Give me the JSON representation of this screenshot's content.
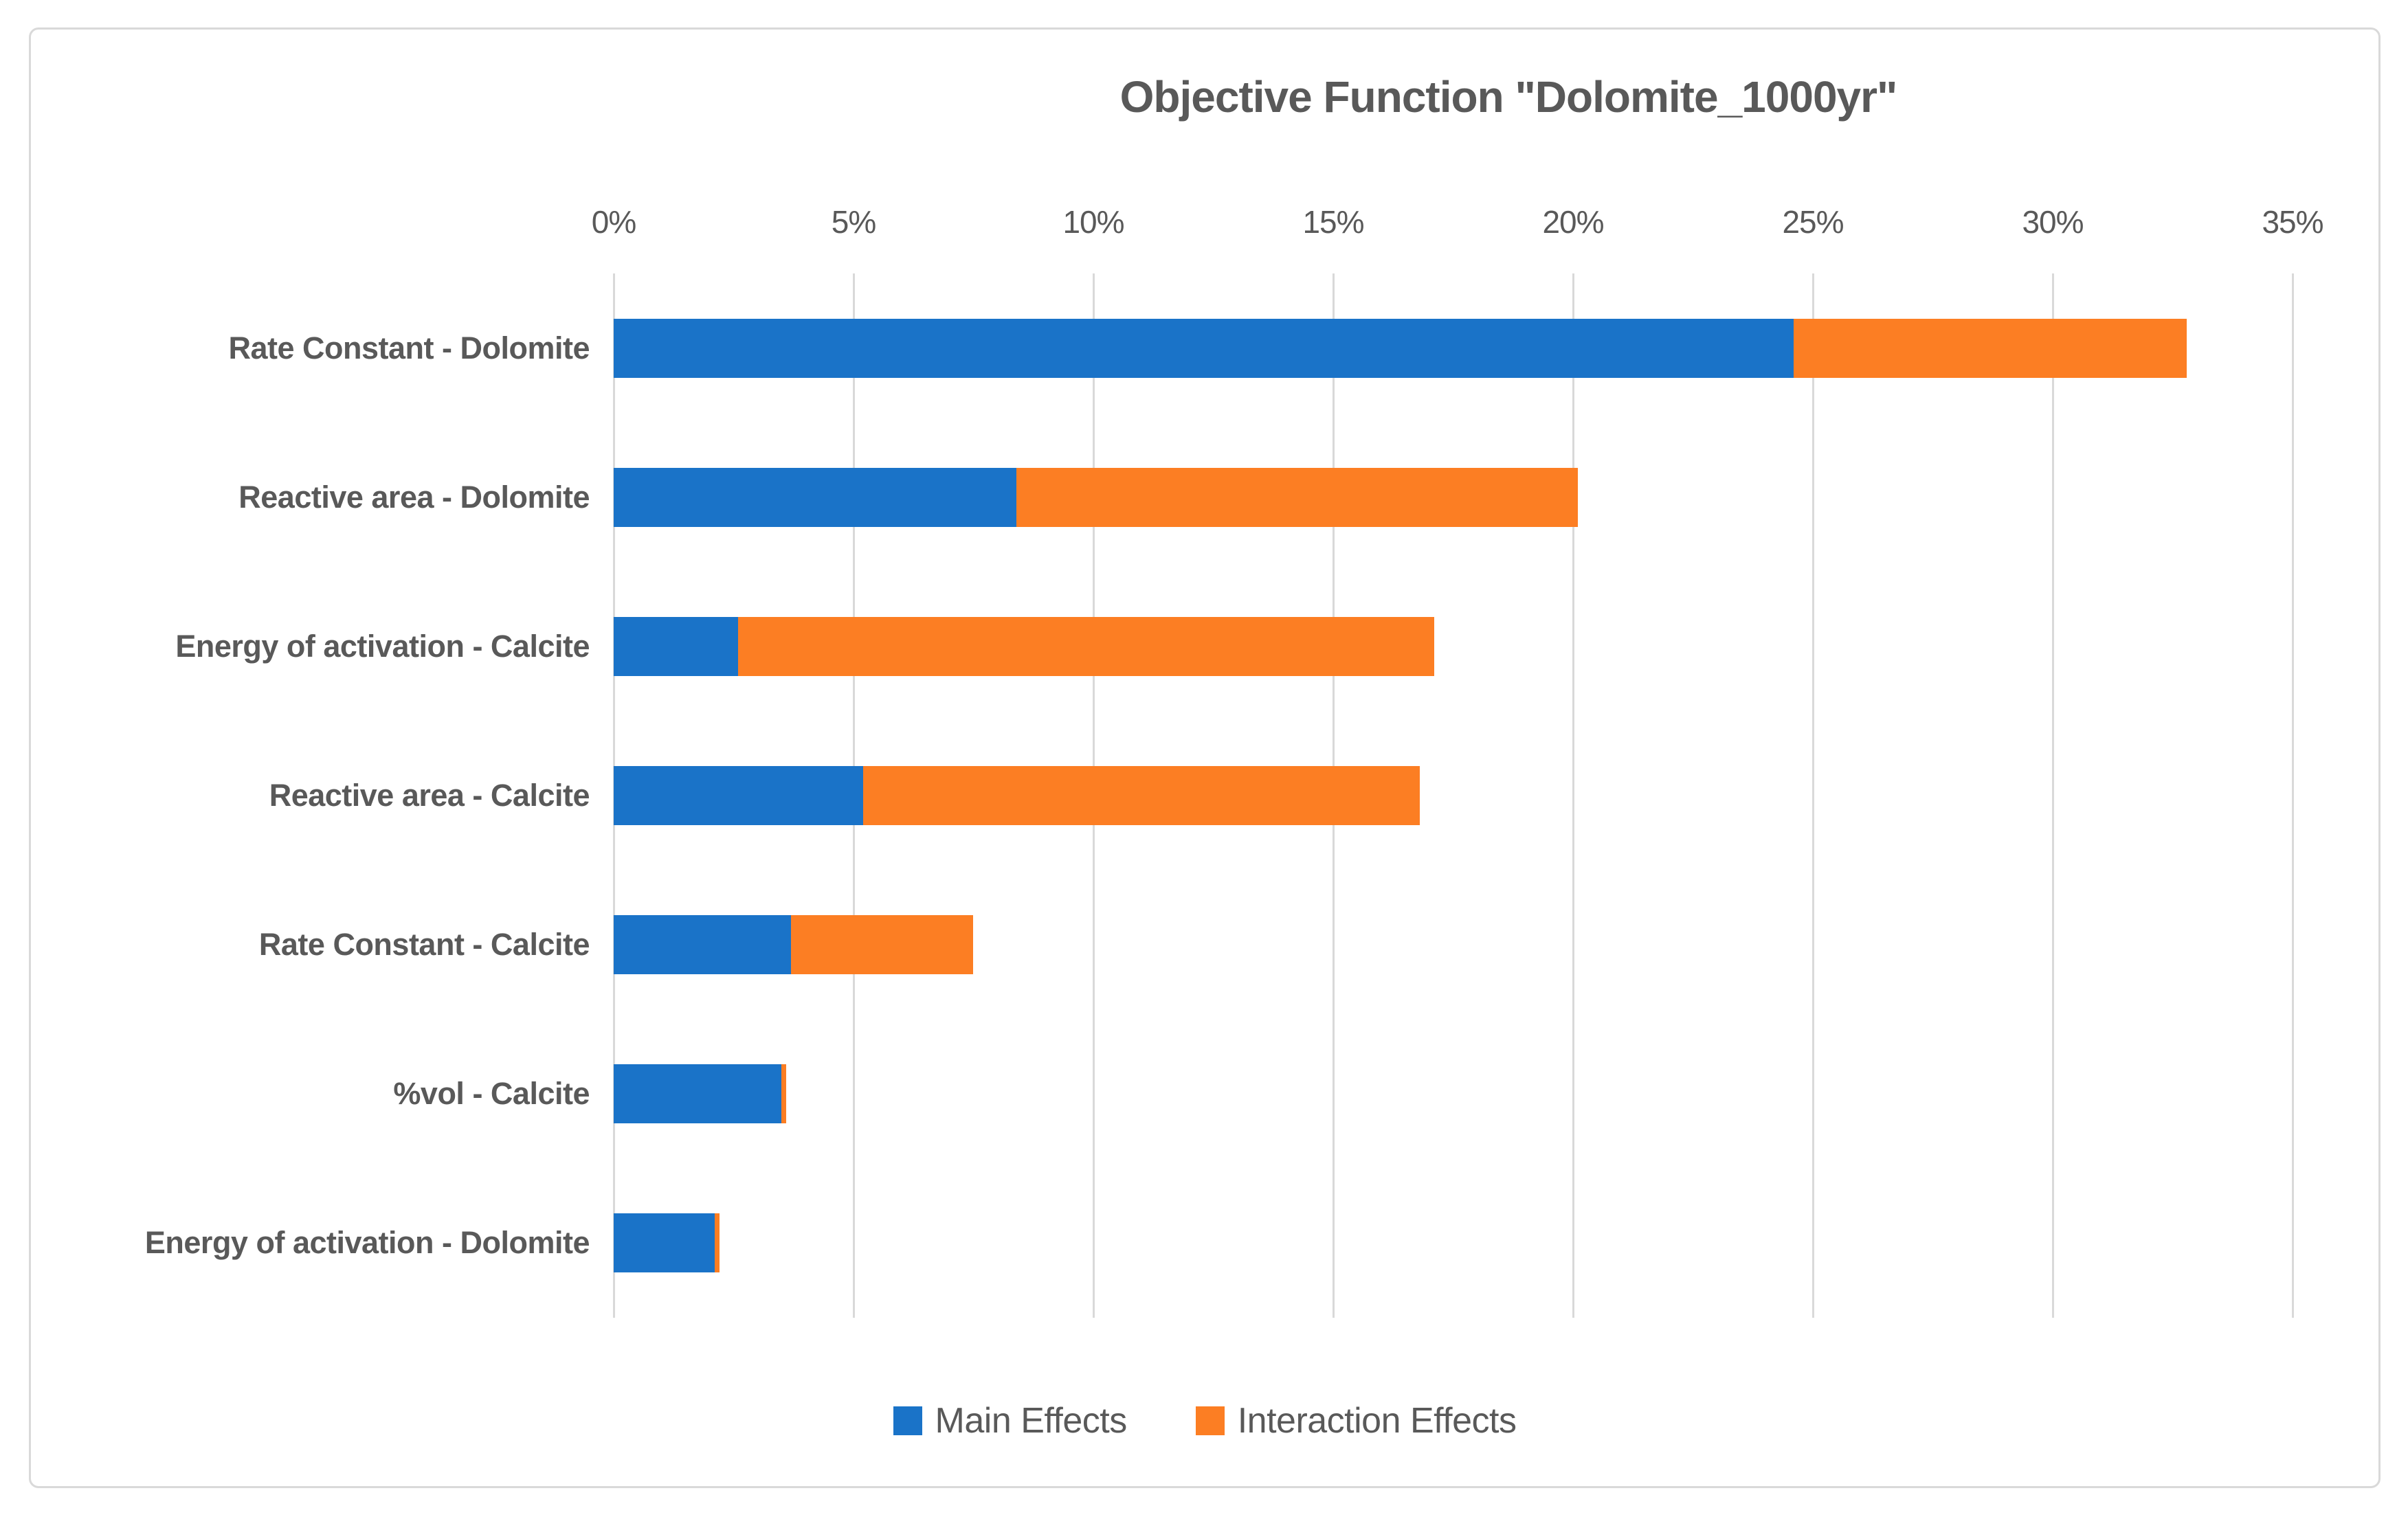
{
  "title": "Objective Function \"Dolomite_1000yr\"",
  "colors": {
    "main_effects": "#1A73C8",
    "interaction_effects": "#FC7E23",
    "gridline": "#D9D9D9",
    "frame_border": "#D9D9D9",
    "text": "#595959"
  },
  "chart_data": {
    "type": "bar",
    "orientation": "horizontal",
    "stacked": true,
    "title": "Objective Function \"Dolomite_1000yr\"",
    "categories": [
      "Rate Constant - Dolomite",
      "Reactive area - Dolomite",
      "Energy of activation - Calcite",
      "Reactive area - Calcite",
      "Rate Constant - Calcite",
      "%vol - Calcite",
      "Energy of activation - Dolomite"
    ],
    "series": [
      {
        "name": "Main Effects",
        "color": "#1A73C8",
        "values": [
          24.6,
          8.4,
          2.6,
          5.2,
          3.7,
          3.5,
          2.1
        ]
      },
      {
        "name": "Interaction Effects",
        "color": "#FC7E23",
        "values": [
          8.2,
          11.7,
          14.5,
          11.6,
          3.8,
          0.1,
          0.1
        ]
      }
    ],
    "totals": [
      32.8,
      20.1,
      17.1,
      16.8,
      7.5,
      3.6,
      2.2
    ],
    "x_axis": {
      "position": "top",
      "min": 0,
      "max": 35,
      "tick_values": [
        0,
        5,
        10,
        15,
        20,
        25,
        30,
        35
      ],
      "tick_labels": [
        "0%",
        "5%",
        "10%",
        "15%",
        "20%",
        "25%",
        "30%",
        "35%"
      ]
    },
    "grid": "vertical",
    "legend": {
      "position": "bottom",
      "entries": [
        "Main Effects",
        "Interaction Effects"
      ]
    }
  }
}
